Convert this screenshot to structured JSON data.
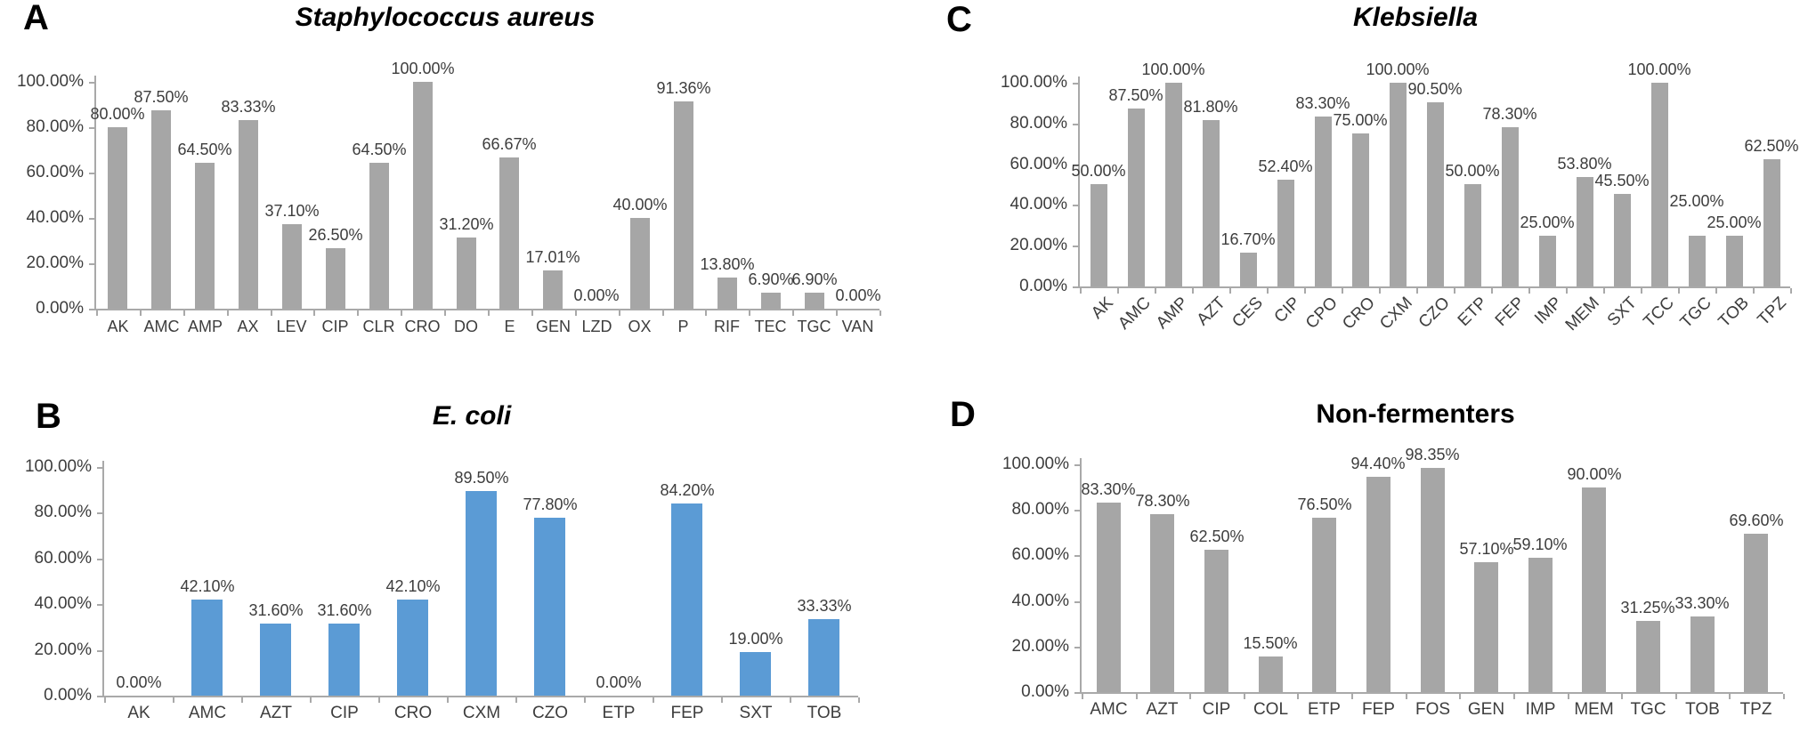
{
  "figure": {
    "background": "#ffffff",
    "text_color": "#3d3d3d",
    "axis_color": "#a9a9a9"
  },
  "chart_data": [
    {
      "panel": "A",
      "type": "bar",
      "title": "Staphylococcus aureus",
      "title_italic": true,
      "bar_color": "#a6a6a6",
      "categories": [
        "AK",
        "AMC",
        "AMP",
        "AX",
        "LEV",
        "CIP",
        "CLR",
        "CRO",
        "DO",
        "E",
        "GEN",
        "LZD",
        "OX",
        "P",
        "RIF",
        "TEC",
        "TGC",
        "VAN"
      ],
      "values": [
        80.0,
        87.5,
        64.5,
        83.33,
        37.1,
        26.5,
        64.5,
        100.0,
        31.2,
        66.67,
        17.01,
        0.0,
        40.0,
        91.36,
        13.8,
        6.9,
        6.9,
        0.0
      ],
      "data_labels": [
        "80.00%",
        "87.50%",
        "64.50%",
        "83.33%",
        "37.10%",
        "26.50%",
        "64.50%",
        "100.00%",
        "31.20%",
        "66.67%",
        "17.01%",
        "0.00%",
        "40.00%",
        "91.36%",
        "13.80%",
        "6.90%",
        "6.90%",
        "0.00%"
      ],
      "xlabel": "",
      "ylabel": "",
      "ylim": [
        0,
        100
      ],
      "y_ticks": [
        "100.00%",
        "80.00%",
        "60.00%",
        "40.00%",
        "20.00%",
        "0.00%"
      ],
      "x_label_rotation": 0,
      "grid": false,
      "legend": "none"
    },
    {
      "panel": "B",
      "type": "bar",
      "title": "E. coli",
      "title_italic": true,
      "bar_color": "#5b9bd5",
      "categories": [
        "AK",
        "AMC",
        "AZT",
        "CIP",
        "CRO",
        "CXM",
        "CZO",
        "ETP",
        "FEP",
        "SXT",
        "TOB"
      ],
      "values": [
        0.0,
        42.1,
        31.6,
        31.6,
        42.1,
        89.5,
        77.8,
        0.0,
        84.2,
        19.0,
        33.33
      ],
      "data_labels": [
        "0.00%",
        "42.10%",
        "31.60%",
        "31.60%",
        "42.10%",
        "89.50%",
        "77.80%",
        "0.00%",
        "84.20%",
        "19.00%",
        "33.33%"
      ],
      "xlabel": "",
      "ylabel": "",
      "ylim": [
        0,
        100
      ],
      "y_ticks": [
        "100.00%",
        "80.00%",
        "60.00%",
        "40.00%",
        "20.00%",
        "0.00%"
      ],
      "x_label_rotation": 0,
      "grid": false,
      "legend": "none"
    },
    {
      "panel": "C",
      "type": "bar",
      "title": "Klebsiella",
      "title_italic": true,
      "bar_color": "#a6a6a6",
      "categories": [
        "AK",
        "AMC",
        "AMP",
        "AZT",
        "CES",
        "CIP",
        "CPO",
        "CRO",
        "CXM",
        "CZO",
        "ETP",
        "FEP",
        "IMP",
        "MEM",
        "SXT",
        "TCC",
        "TGC",
        "TOB",
        "TPZ"
      ],
      "values": [
        50.0,
        87.5,
        100.0,
        81.8,
        16.7,
        52.4,
        83.3,
        75.0,
        100.0,
        90.5,
        50.0,
        78.3,
        25.0,
        53.8,
        45.5,
        100.0,
        25.0,
        25.0,
        62.5
      ],
      "data_labels": [
        "50.00%",
        "87.50%",
        "100.00%",
        "81.80%",
        "16.70%",
        "52.40%",
        "83.30%",
        "75.00%",
        "100.00%",
        "90.50%",
        "50.00%",
        "78.30%",
        "25.00%",
        "53.80%",
        "45.50%",
        "100.00%",
        "25.00%",
        "25.00%",
        "62.50%"
      ],
      "label_dy": {
        "16": -24
      },
      "xlabel": "",
      "ylabel": "",
      "ylim": [
        0,
        100
      ],
      "y_ticks": [
        "100.00%",
        "80.00%",
        "60.00%",
        "40.00%",
        "20.00%",
        "0.00%"
      ],
      "x_label_rotation": 45,
      "grid": false,
      "legend": "none"
    },
    {
      "panel": "D",
      "type": "bar",
      "title": "Non-fermenters",
      "title_italic": false,
      "bar_color": "#a6a6a6",
      "categories": [
        "AMC",
        "AZT",
        "CIP",
        "COL",
        "ETP",
        "FEP",
        "FOS",
        "GEN",
        "IMP",
        "MEM",
        "TGC",
        "TOB",
        "TPZ"
      ],
      "values": [
        83.3,
        78.3,
        62.5,
        15.5,
        76.5,
        94.4,
        98.35,
        57.1,
        59.1,
        90.0,
        31.25,
        33.3,
        69.6
      ],
      "data_labels": [
        "83.30%",
        "78.30%",
        "62.50%",
        "15.50%",
        "76.50%",
        "94.40%",
        "98.35%",
        "57.10%",
        "59.10%",
        "90.00%",
        "31.25%",
        "33.30%",
        "69.60%"
      ],
      "xlabel": "",
      "ylabel": "",
      "ylim": [
        0,
        100
      ],
      "y_ticks": [
        "100.00%",
        "80.00%",
        "60.00%",
        "40.00%",
        "20.00%",
        "0.00%"
      ],
      "x_label_rotation": 0,
      "grid": false,
      "legend": "none"
    }
  ]
}
